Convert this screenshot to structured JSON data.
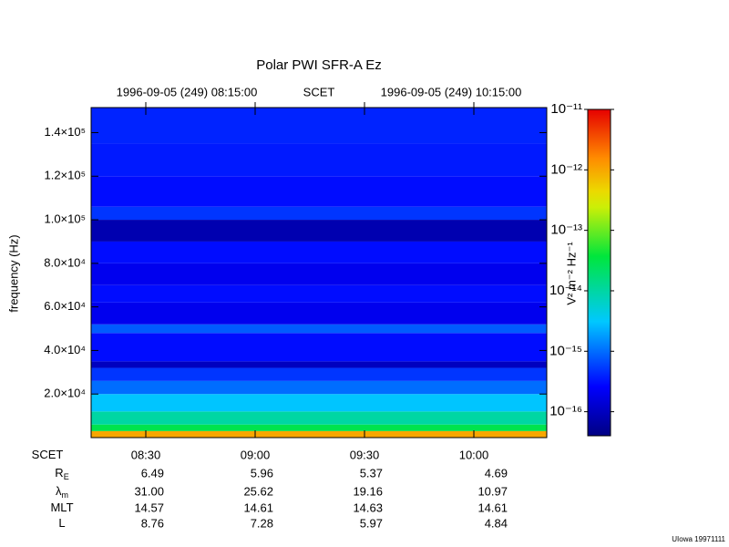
{
  "chart_data": {
    "type": "spectrogram",
    "title": "Polar PWI SFR-A Ez",
    "top_labels": [
      "1996-09-05 (249) 08:15:00",
      "SCET",
      "1996-09-05 (249) 10:15:00"
    ],
    "ylabel": "frequency (Hz)",
    "ylim": [
      0,
      151500
    ],
    "yticks": [
      {
        "value": 20000,
        "label": "2.0×10⁴"
      },
      {
        "value": 40000,
        "label": "4.0×10⁴"
      },
      {
        "value": 60000,
        "label": "6.0×10⁴"
      },
      {
        "value": 80000,
        "label": "8.0×10⁴"
      },
      {
        "value": 100000,
        "label": "1.0×10⁵"
      },
      {
        "value": 120000,
        "label": "1.2×10⁵"
      },
      {
        "value": 140000,
        "label": "1.4×10⁵"
      }
    ],
    "xlim": [
      495,
      620
    ],
    "xticks": [
      {
        "value": 510,
        "label": "08:30"
      },
      {
        "value": 540,
        "label": "09:00"
      },
      {
        "value": 570,
        "label": "09:30"
      },
      {
        "value": 600,
        "label": "10:00"
      }
    ],
    "freq_edges": [
      0,
      3000,
      6000,
      12000,
      20000,
      26000,
      32000,
      35000,
      48000,
      52000,
      62000,
      70000,
      80000,
      90000,
      100000,
      106000,
      120000,
      135000,
      151500
    ],
    "levels": [
      1e-12,
      3e-14,
      1e-14,
      3e-15,
      1e-15,
      5e-16,
      1e-16,
      3e-16,
      8e-16,
      2e-16,
      3e-16,
      2e-16,
      3e-16,
      8e-17,
      5e-16,
      3e-16,
      3.5e-16,
      4e-16
    ],
    "colorbar": {
      "label": "V² m⁻² Hz⁻¹",
      "log": true,
      "zlim": [
        4e-17,
        1e-11
      ],
      "ticks": [
        {
          "value": 1e-11,
          "label": "10⁻¹¹"
        },
        {
          "value": 1e-12,
          "label": "10⁻¹²"
        },
        {
          "value": 1e-13,
          "label": "10⁻¹³"
        },
        {
          "value": 1e-14,
          "label": "10⁻¹⁴"
        },
        {
          "value": 1e-15,
          "label": "10⁻¹⁵"
        },
        {
          "value": 1e-16,
          "label": "10⁻¹⁶"
        }
      ]
    },
    "ephemeris": [
      {
        "label": "SCET",
        "sub": null,
        "values": [
          "08:30",
          "09:00",
          "09:30",
          "10:00"
        ]
      },
      {
        "label": "R",
        "sub": "E",
        "values": [
          "6.49",
          "5.96",
          "5.37",
          "4.69"
        ]
      },
      {
        "label": "λ",
        "sub": "m",
        "values": [
          "31.00",
          "25.62",
          "19.16",
          "10.97"
        ]
      },
      {
        "label": "MLT",
        "sub": null,
        "values": [
          "14.57",
          "14.61",
          "14.63",
          "14.61"
        ]
      },
      {
        "label": "L",
        "sub": null,
        "values": [
          "8.76",
          "7.28",
          "5.97",
          "4.84"
        ]
      }
    ],
    "footer": "UIowa 19971111"
  }
}
